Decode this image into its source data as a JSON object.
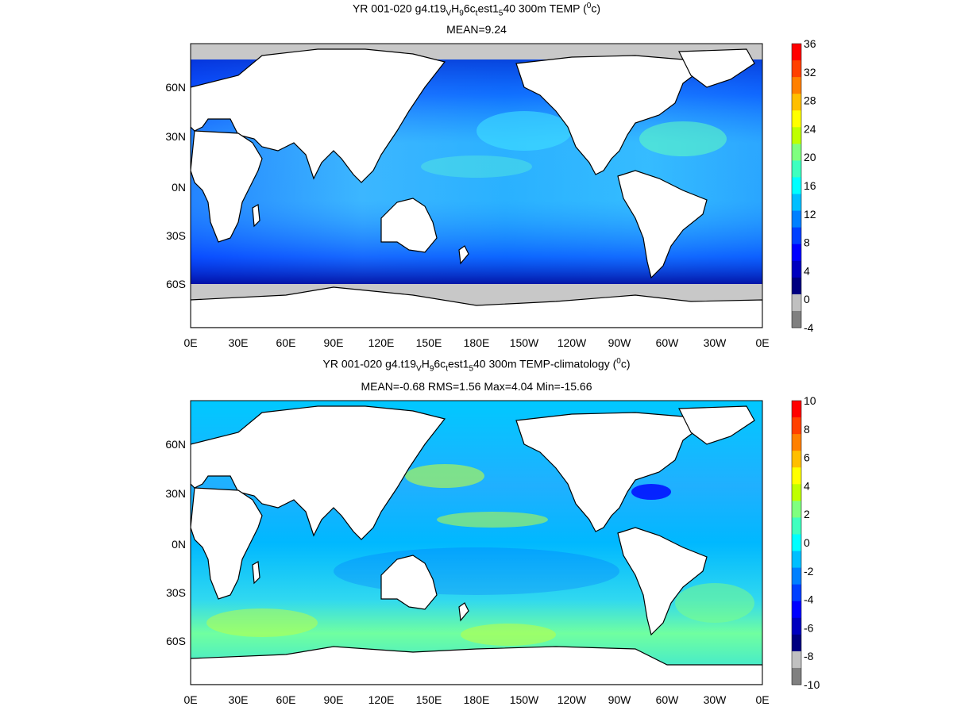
{
  "panels": [
    {
      "title": {
        "p1": "YR 001-020 g4.t19",
        "s1": "V",
        "p2": "H",
        "s2": "9",
        "p3": "6c",
        "s3": "t",
        "p4": "est1",
        "s4": "5",
        "p5": "40 300m TEMP (",
        "sup": "0",
        "p6": "c)"
      },
      "subtitle": "MEAN=9.24",
      "colorbar_labels": [
        "36",
        "32",
        "28",
        "24",
        "20",
        "16",
        "12",
        "8",
        "4",
        "0",
        "-4"
      ],
      "colorbar_colors": [
        "#ff0000",
        "#ff4000",
        "#ff8000",
        "#ffbf00",
        "#ffff00",
        "#bfff00",
        "#7fff7f",
        "#3fffbf",
        "#00ffff",
        "#00bfff",
        "#0080ff",
        "#0040ff",
        "#0000ff",
        "#0000bf",
        "#000080",
        "#c0c0c0",
        "#808080"
      ]
    },
    {
      "title": {
        "p1": "YR 001-020 g4.t19",
        "s1": "V",
        "p2": "H",
        "s2": "9",
        "p3": "6c",
        "s3": "t",
        "p4": "est1",
        "s4": "5",
        "p5": "40 300m TEMP-climatology (",
        "sup": "0",
        "p6": "c)"
      },
      "subtitle": "MEAN=-0.68   RMS=1.56   Max=4.04   Min=-15.66",
      "colorbar_labels": [
        "10",
        "8",
        "6",
        "4",
        "2",
        "0",
        "-2",
        "-4",
        "-6",
        "-8",
        "-10"
      ],
      "colorbar_colors": [
        "#ff0000",
        "#ff4000",
        "#ff8000",
        "#ffbf00",
        "#ffff00",
        "#bfff00",
        "#7fff7f",
        "#3fffbf",
        "#00ffff",
        "#00bfff",
        "#0080ff",
        "#0040ff",
        "#0000ff",
        "#0000bf",
        "#000080",
        "#c0c0c0",
        "#808080"
      ]
    }
  ],
  "lon_labels": [
    "0E",
    "30E",
    "60E",
    "90E",
    "120E",
    "150E",
    "180E",
    "150W",
    "120W",
    "90W",
    "60W",
    "30W",
    "0E"
  ],
  "lat_labels": [
    "60N",
    "30N",
    "0N",
    "30S",
    "60S"
  ],
  "colors": {
    "land": "#ffffff",
    "ice": "#c8c8c8",
    "coast": "#000000"
  }
}
